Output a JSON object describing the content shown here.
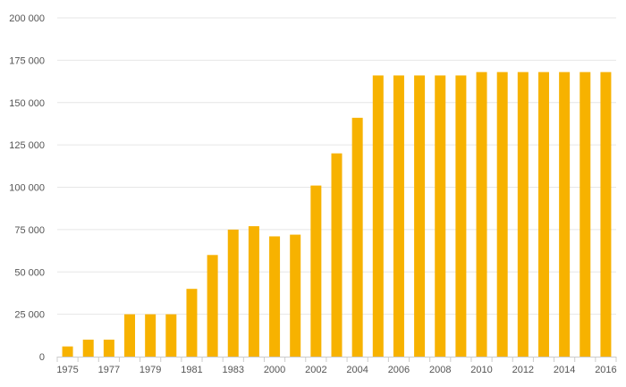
{
  "chart_data": {
    "type": "bar",
    "title": "",
    "xlabel": "",
    "ylabel": "",
    "color": "#f7b200",
    "grid": true,
    "ylim": [
      0,
      200000
    ],
    "y_ticks": [
      0,
      25000,
      50000,
      75000,
      100000,
      125000,
      150000,
      175000,
      200000
    ],
    "y_tick_labels": [
      "0",
      "25 000",
      "50 000",
      "75 000",
      "100 000",
      "125 000",
      "150 000",
      "175 000",
      "200 000"
    ],
    "categories": [
      "1975",
      "1976",
      "1977",
      "1978",
      "1979",
      "1980",
      "1981",
      "1982",
      "1983",
      "1984",
      "2000",
      "2001",
      "2002",
      "2003",
      "2004",
      "2005",
      "2006",
      "2007",
      "2008",
      "2009",
      "2010",
      "2011",
      "2012",
      "2013",
      "2014",
      "2015",
      "2016"
    ],
    "category_labels_shown": [
      "1975",
      "",
      "1977",
      "",
      "1979",
      "",
      "1981",
      "",
      "1983",
      "",
      "2000",
      "",
      "2002",
      "",
      "2004",
      "",
      "2006",
      "",
      "2008",
      "",
      "2010",
      "",
      "2012",
      "",
      "2014",
      "",
      "2016"
    ],
    "values": [
      6000,
      10000,
      10000,
      25000,
      25000,
      25000,
      40000,
      60000,
      75000,
      77000,
      71000,
      72000,
      101000,
      120000,
      141000,
      166000,
      166000,
      166000,
      166000,
      166000,
      168000,
      168000,
      168000,
      168000,
      168000,
      168000,
      168000
    ]
  }
}
